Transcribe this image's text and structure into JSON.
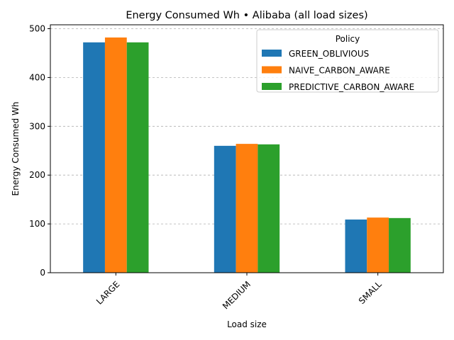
{
  "chart_data": {
    "type": "bar",
    "title": "Energy Consumed Wh • Alibaba (all load sizes)",
    "xlabel": "Load size",
    "ylabel": "Energy Consumed Wh",
    "categories": [
      "LARGE",
      "MEDIUM",
      "SMALL"
    ],
    "ylim": [
      0,
      508
    ],
    "yticks": [
      0,
      100,
      200,
      300,
      400,
      500
    ],
    "grid": "y-dashed",
    "legend": {
      "title": "Policy",
      "placement": "top-right"
    },
    "series": [
      {
        "name": "GREEN_OBLIVIOUS",
        "color": "#1f77b4",
        "values": [
          472,
          260,
          109
        ]
      },
      {
        "name": "NAIVE_CARBON_AWARE",
        "color": "#ff7f0e",
        "values": [
          482,
          264,
          113
        ]
      },
      {
        "name": "PREDICTIVE_CARBON_AWARE",
        "color": "#2ca02c",
        "values": [
          472,
          263,
          112
        ]
      }
    ]
  }
}
